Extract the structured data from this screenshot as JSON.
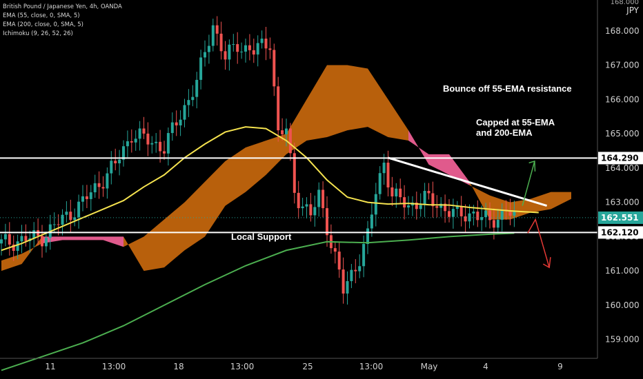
{
  "chart_title": "British Pound / Japanese Yen, 4h, OANDA",
  "indicators": [
    "EMA (55, close, 0, SMA, 5)",
    "EMA (200, close, 0, SMA, 5)",
    "Ichimoku (9, 26, 52, 26)"
  ],
  "currency_label": "JPY",
  "currency_top": "168.000",
  "annotations": {
    "bounce": "Bounce off 55-EMA resistance",
    "capped_line1": "Capped at 55-EMA",
    "capped_line2": "and 200-EMA",
    "support": "Local Support"
  },
  "colors": {
    "background": "#000000",
    "bull_candle": "#26a69a",
    "bear_candle": "#ef5350",
    "ema55": "#f5e34f",
    "ema200": "#4caf50",
    "cloud_bull": "#b8600c",
    "cloud_bear": "#e05a8c",
    "level_line": "#ffffff",
    "price_badge": "#26a69a",
    "arrow_up": "#4caf50",
    "arrow_down": "#e53935"
  },
  "chart_data": {
    "type": "candlestick",
    "title": "British Pound / Japanese Yen, 4h, OANDA",
    "y_axis": {
      "ticks": [
        "159.000",
        "160.000",
        "161.000",
        "162.000",
        "163.000",
        "164.000",
        "165.000",
        "166.000",
        "167.000",
        "168.000"
      ],
      "range": [
        158.45,
        168.9
      ]
    },
    "x_axis": {
      "ticks": [
        "11",
        "13:00",
        "18",
        "13:00",
        "25",
        "13:00",
        "May",
        "4",
        "9"
      ]
    },
    "price_levels": [
      {
        "name": "resistance",
        "value": 164.29,
        "label": "164.290"
      },
      {
        "name": "support",
        "value": 162.12,
        "label": "162.120"
      }
    ],
    "last_price": {
      "value": 162.551,
      "label": "162.551"
    },
    "series": [
      {
        "name": "EMA (55, close, 0, SMA, 5)",
        "type": "line",
        "x": [
          0,
          5,
          10,
          15,
          20,
          25,
          30,
          35,
          40,
          45,
          50,
          55,
          60,
          65,
          70,
          75,
          80,
          85,
          90,
          95,
          100,
          105,
          110,
          115,
          120,
          125,
          132
        ],
        "y": [
          161.6,
          161.8,
          162.05,
          162.3,
          162.55,
          162.8,
          163.05,
          163.45,
          163.8,
          164.3,
          164.7,
          165.05,
          165.2,
          165.15,
          164.8,
          164.3,
          163.65,
          163.15,
          163.0,
          162.95,
          162.97,
          162.93,
          162.92,
          162.85,
          162.8,
          162.75,
          162.7
        ]
      },
      {
        "name": "EMA (200, close, 0, SMA, 5)",
        "type": "line",
        "x": [
          0,
          10,
          20,
          30,
          40,
          50,
          60,
          70,
          80,
          90,
          100,
          110,
          120,
          126
        ],
        "y": [
          158.1,
          158.5,
          158.9,
          159.4,
          160.0,
          160.6,
          161.15,
          161.6,
          161.85,
          161.82,
          161.9,
          162.0,
          162.07,
          162.1
        ]
      },
      {
        "name": "Ichimoku (9, 26, 52, 26)",
        "type": "cloud",
        "x": [
          0,
          5,
          10,
          15,
          20,
          25,
          30,
          35,
          40,
          45,
          50,
          55,
          60,
          65,
          70,
          75,
          80,
          85,
          90,
          95,
          100,
          105,
          110,
          115,
          120,
          125,
          130,
          135,
          140
        ],
        "span_a": [
          161.3,
          161.5,
          161.8,
          161.9,
          161.9,
          161.9,
          161.7,
          162.0,
          162.5,
          163.0,
          163.6,
          164.2,
          164.6,
          164.8,
          165.0,
          166.0,
          167.0,
          167.0,
          166.9,
          166.0,
          165.1,
          164.1,
          163.8,
          163.5,
          163.2,
          163.0,
          163.1,
          163.3,
          163.3
        ],
        "span_b": [
          161.0,
          161.2,
          162.0,
          162.0,
          162.0,
          162.0,
          162.0,
          161.0,
          161.1,
          161.6,
          162.0,
          162.9,
          163.3,
          163.8,
          164.4,
          164.8,
          164.9,
          165.1,
          165.2,
          164.9,
          164.8,
          164.4,
          164.4,
          163.6,
          162.5,
          162.5,
          162.7,
          162.8,
          163.1
        ]
      }
    ]
  }
}
